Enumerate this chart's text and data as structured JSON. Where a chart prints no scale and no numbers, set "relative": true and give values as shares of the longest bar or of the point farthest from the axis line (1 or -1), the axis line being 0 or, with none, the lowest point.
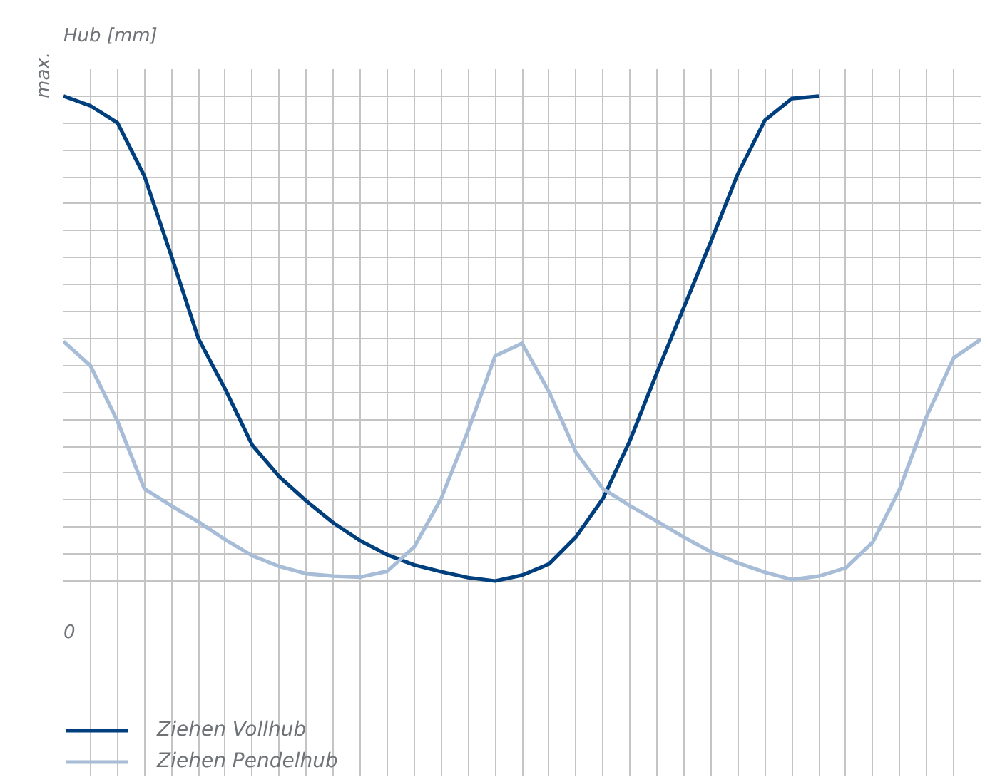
{
  "chart_data": {
    "type": "line",
    "relative": true,
    "title": "Hub [mm]",
    "annotations": [
      "max.",
      "0"
    ],
    "grid": true,
    "legend": "bottom",
    "line_style": "solid",
    "categories": [
      null,
      null,
      null,
      null,
      null,
      null,
      null,
      null,
      null,
      null,
      null,
      null,
      null,
      null,
      null,
      null,
      null,
      null,
      null,
      null,
      null,
      null,
      null,
      null,
      null,
      null,
      null,
      null,
      null,
      null,
      null,
      null,
      null,
      null,
      null
    ],
    "series": [
      {
        "name": "Ziehen Vollhub",
        "color": "#003f7d",
        "values": [
          1.0,
          0.98,
          0.945,
          0.835,
          0.67,
          0.5,
          0.395,
          0.28,
          0.215,
          0.165,
          0.12,
          0.083,
          0.054,
          0.033,
          0.019,
          0.007,
          0.0,
          0.012,
          0.035,
          0.091,
          0.17,
          0.29,
          0.43,
          0.565,
          0.7,
          0.84,
          0.95,
          0.995,
          1.0,
          null,
          null,
          null,
          null,
          null,
          null
        ]
      },
      {
        "name": "Ziehen Pendelhub",
        "color": "#a7bcd6",
        "values": [
          0.494,
          0.444,
          0.33,
          0.19,
          0.155,
          0.122,
          0.085,
          0.052,
          0.03,
          0.015,
          0.01,
          0.008,
          0.02,
          0.07,
          0.17,
          0.31,
          0.464,
          0.49,
          0.39,
          0.265,
          0.19,
          0.155,
          0.123,
          0.09,
          0.06,
          0.037,
          0.018,
          0.003,
          0.01,
          0.027,
          0.08,
          0.19,
          0.34,
          0.46,
          0.498
        ]
      }
    ]
  }
}
